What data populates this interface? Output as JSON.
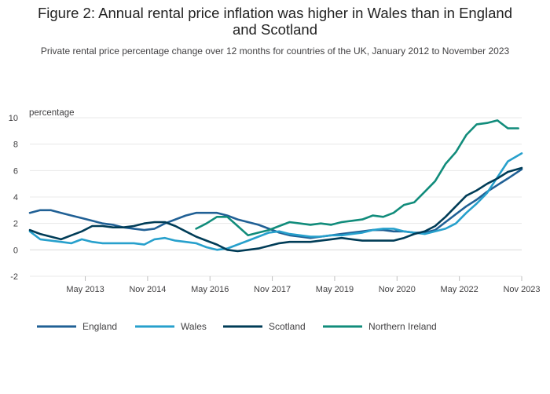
{
  "title_line1": "Figure 2: Annual rental price inflation was higher in Wales than in England",
  "title_line2": "and Scotland",
  "subtitle": "Private rental price percentage change over 12 months for countries of the UK, January 2012 to November 2023",
  "chart_data": {
    "type": "line",
    "title": "Figure 2: Annual rental price inflation was higher in Wales than in England and Scotland",
    "subtitle": "Private rental price percentage change over 12 months for countries of the UK, January 2012 to November 2023",
    "ylabel": "percentage",
    "ylim": [
      -2,
      10
    ],
    "yticks": [
      -2,
      0,
      2,
      4,
      6,
      8,
      10
    ],
    "xlim": [
      "2012-01",
      "2023-11"
    ],
    "xticks": [
      {
        "date": "2013-05",
        "label": "May 2013"
      },
      {
        "date": "2014-11",
        "label": "Nov 2014"
      },
      {
        "date": "2016-05",
        "label": "May 2016"
      },
      {
        "date": "2017-11",
        "label": "Nov 2017"
      },
      {
        "date": "2019-05",
        "label": "May 2019"
      },
      {
        "date": "2020-11",
        "label": "Nov 2020"
      },
      {
        "date": "2022-05",
        "label": "May 2022"
      },
      {
        "date": "2023-11",
        "label": "Nov 2023"
      }
    ],
    "grid": true,
    "legend_position": "bottom",
    "series": [
      {
        "name": "England",
        "color": "#206095",
        "points": [
          [
            "2012-01",
            2.8
          ],
          [
            "2012-04",
            3.0
          ],
          [
            "2012-07",
            3.0
          ],
          [
            "2012-10",
            2.8
          ],
          [
            "2013-01",
            2.6
          ],
          [
            "2013-04",
            2.4
          ],
          [
            "2013-07",
            2.2
          ],
          [
            "2013-10",
            2.0
          ],
          [
            "2014-01",
            1.9
          ],
          [
            "2014-04",
            1.7
          ],
          [
            "2014-07",
            1.6
          ],
          [
            "2014-10",
            1.5
          ],
          [
            "2015-01",
            1.6
          ],
          [
            "2015-04",
            2.0
          ],
          [
            "2015-07",
            2.3
          ],
          [
            "2015-10",
            2.6
          ],
          [
            "2016-01",
            2.8
          ],
          [
            "2016-04",
            2.8
          ],
          [
            "2016-07",
            2.8
          ],
          [
            "2016-10",
            2.6
          ],
          [
            "2017-01",
            2.3
          ],
          [
            "2017-04",
            2.1
          ],
          [
            "2017-07",
            1.9
          ],
          [
            "2017-10",
            1.6
          ],
          [
            "2018-01",
            1.3
          ],
          [
            "2018-04",
            1.1
          ],
          [
            "2018-07",
            1.0
          ],
          [
            "2018-10",
            0.9
          ],
          [
            "2019-01",
            1.0
          ],
          [
            "2019-04",
            1.1
          ],
          [
            "2019-07",
            1.2
          ],
          [
            "2019-10",
            1.3
          ],
          [
            "2020-01",
            1.4
          ],
          [
            "2020-04",
            1.5
          ],
          [
            "2020-07",
            1.5
          ],
          [
            "2020-10",
            1.4
          ],
          [
            "2021-01",
            1.4
          ],
          [
            "2021-04",
            1.3
          ],
          [
            "2021-07",
            1.3
          ],
          [
            "2021-10",
            1.5
          ],
          [
            "2022-01",
            2.1
          ],
          [
            "2022-04",
            2.7
          ],
          [
            "2022-07",
            3.3
          ],
          [
            "2022-10",
            3.8
          ],
          [
            "2023-01",
            4.4
          ],
          [
            "2023-04",
            4.9
          ],
          [
            "2023-07",
            5.4
          ],
          [
            "2023-11",
            6.1
          ]
        ]
      },
      {
        "name": "Wales",
        "color": "#27a0cc",
        "points": [
          [
            "2012-01",
            1.4
          ],
          [
            "2012-04",
            0.8
          ],
          [
            "2012-07",
            0.7
          ],
          [
            "2012-10",
            0.6
          ],
          [
            "2013-01",
            0.5
          ],
          [
            "2013-04",
            0.8
          ],
          [
            "2013-07",
            0.6
          ],
          [
            "2013-10",
            0.5
          ],
          [
            "2014-01",
            0.5
          ],
          [
            "2014-04",
            0.5
          ],
          [
            "2014-07",
            0.5
          ],
          [
            "2014-10",
            0.4
          ],
          [
            "2015-01",
            0.8
          ],
          [
            "2015-04",
            0.9
          ],
          [
            "2015-07",
            0.7
          ],
          [
            "2015-10",
            0.6
          ],
          [
            "2016-01",
            0.5
          ],
          [
            "2016-04",
            0.2
          ],
          [
            "2016-07",
            0.0
          ],
          [
            "2016-10",
            0.1
          ],
          [
            "2017-01",
            0.4
          ],
          [
            "2017-04",
            0.7
          ],
          [
            "2017-07",
            1.0
          ],
          [
            "2017-10",
            1.3
          ],
          [
            "2018-01",
            1.4
          ],
          [
            "2018-04",
            1.2
          ],
          [
            "2018-07",
            1.1
          ],
          [
            "2018-10",
            1.0
          ],
          [
            "2019-01",
            1.0
          ],
          [
            "2019-04",
            1.1
          ],
          [
            "2019-07",
            1.1
          ],
          [
            "2019-10",
            1.2
          ],
          [
            "2020-01",
            1.3
          ],
          [
            "2020-04",
            1.5
          ],
          [
            "2020-07",
            1.6
          ],
          [
            "2020-10",
            1.6
          ],
          [
            "2021-01",
            1.4
          ],
          [
            "2021-04",
            1.3
          ],
          [
            "2021-07",
            1.2
          ],
          [
            "2021-10",
            1.4
          ],
          [
            "2022-01",
            1.6
          ],
          [
            "2022-04",
            2.0
          ],
          [
            "2022-07",
            2.8
          ],
          [
            "2022-10",
            3.5
          ],
          [
            "2023-01",
            4.3
          ],
          [
            "2023-04",
            5.5
          ],
          [
            "2023-07",
            6.7
          ],
          [
            "2023-11",
            7.3
          ]
        ]
      },
      {
        "name": "Scotland",
        "color": "#003c57",
        "points": [
          [
            "2012-01",
            1.5
          ],
          [
            "2012-04",
            1.2
          ],
          [
            "2012-07",
            1.0
          ],
          [
            "2012-10",
            0.8
          ],
          [
            "2013-01",
            1.1
          ],
          [
            "2013-04",
            1.4
          ],
          [
            "2013-07",
            1.8
          ],
          [
            "2013-10",
            1.8
          ],
          [
            "2014-01",
            1.7
          ],
          [
            "2014-04",
            1.7
          ],
          [
            "2014-07",
            1.8
          ],
          [
            "2014-10",
            2.0
          ],
          [
            "2015-01",
            2.1
          ],
          [
            "2015-04",
            2.1
          ],
          [
            "2015-07",
            1.8
          ],
          [
            "2015-10",
            1.4
          ],
          [
            "2016-01",
            1.0
          ],
          [
            "2016-04",
            0.7
          ],
          [
            "2016-07",
            0.4
          ],
          [
            "2016-10",
            0.0
          ],
          [
            "2017-01",
            -0.1
          ],
          [
            "2017-04",
            0.0
          ],
          [
            "2017-07",
            0.1
          ],
          [
            "2017-10",
            0.3
          ],
          [
            "2018-01",
            0.5
          ],
          [
            "2018-04",
            0.6
          ],
          [
            "2018-07",
            0.6
          ],
          [
            "2018-10",
            0.6
          ],
          [
            "2019-01",
            0.7
          ],
          [
            "2019-04",
            0.8
          ],
          [
            "2019-07",
            0.9
          ],
          [
            "2019-10",
            0.8
          ],
          [
            "2020-01",
            0.7
          ],
          [
            "2020-04",
            0.7
          ],
          [
            "2020-07",
            0.7
          ],
          [
            "2020-10",
            0.7
          ],
          [
            "2021-01",
            0.9
          ],
          [
            "2021-04",
            1.2
          ],
          [
            "2021-07",
            1.4
          ],
          [
            "2021-10",
            1.8
          ],
          [
            "2022-01",
            2.5
          ],
          [
            "2022-04",
            3.3
          ],
          [
            "2022-07",
            4.1
          ],
          [
            "2022-10",
            4.5
          ],
          [
            "2023-01",
            5.0
          ],
          [
            "2023-04",
            5.4
          ],
          [
            "2023-07",
            5.9
          ],
          [
            "2023-11",
            6.2
          ]
        ]
      },
      {
        "name": "Northern Ireland",
        "color": "#118c7b",
        "points": [
          [
            "2016-01",
            1.6
          ],
          [
            "2016-04",
            2.0
          ],
          [
            "2016-07",
            2.5
          ],
          [
            "2016-10",
            2.5
          ],
          [
            "2017-01",
            1.8
          ],
          [
            "2017-04",
            1.1
          ],
          [
            "2017-07",
            1.3
          ],
          [
            "2017-10",
            1.5
          ],
          [
            "2018-01",
            1.8
          ],
          [
            "2018-04",
            2.1
          ],
          [
            "2018-07",
            2.0
          ],
          [
            "2018-10",
            1.9
          ],
          [
            "2019-01",
            2.0
          ],
          [
            "2019-04",
            1.9
          ],
          [
            "2019-07",
            2.1
          ],
          [
            "2019-10",
            2.2
          ],
          [
            "2020-01",
            2.3
          ],
          [
            "2020-04",
            2.6
          ],
          [
            "2020-07",
            2.5
          ],
          [
            "2020-10",
            2.8
          ],
          [
            "2021-01",
            3.4
          ],
          [
            "2021-04",
            3.6
          ],
          [
            "2021-07",
            4.4
          ],
          [
            "2021-10",
            5.2
          ],
          [
            "2022-01",
            6.5
          ],
          [
            "2022-04",
            7.4
          ],
          [
            "2022-07",
            8.7
          ],
          [
            "2022-10",
            9.5
          ],
          [
            "2023-01",
            9.6
          ],
          [
            "2023-04",
            9.8
          ],
          [
            "2023-07",
            9.2
          ],
          [
            "2023-10",
            9.2
          ]
        ]
      }
    ]
  }
}
